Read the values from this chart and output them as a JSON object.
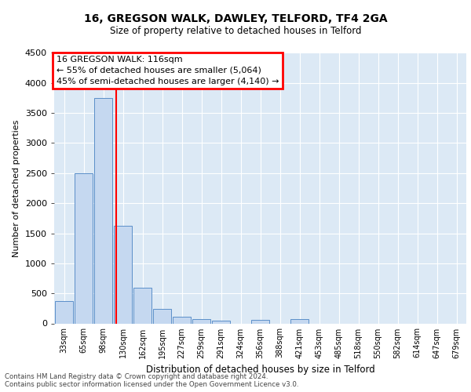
{
  "title1": "16, GREGSON WALK, DAWLEY, TELFORD, TF4 2GA",
  "title2": "Size of property relative to detached houses in Telford",
  "xlabel": "Distribution of detached houses by size in Telford",
  "ylabel": "Number of detached properties",
  "categories": [
    "33sqm",
    "65sqm",
    "98sqm",
    "130sqm",
    "162sqm",
    "195sqm",
    "227sqm",
    "259sqm",
    "291sqm",
    "324sqm",
    "356sqm",
    "388sqm",
    "421sqm",
    "453sqm",
    "485sqm",
    "518sqm",
    "550sqm",
    "582sqm",
    "614sqm",
    "647sqm",
    "679sqm"
  ],
  "values": [
    370,
    2500,
    3750,
    1630,
    590,
    245,
    110,
    70,
    50,
    0,
    60,
    0,
    70,
    0,
    0,
    0,
    0,
    0,
    0,
    0,
    0
  ],
  "bar_color": "#c5d8f0",
  "bar_edgecolor": "#5b8fc9",
  "vline_x": 2.67,
  "annotation_text": "16 GREGSON WALK: 116sqm\n← 55% of detached houses are smaller (5,064)\n45% of semi-detached houses are larger (4,140) →",
  "box_edgecolor": "red",
  "ylim": [
    0,
    4500
  ],
  "yticks": [
    0,
    500,
    1000,
    1500,
    2000,
    2500,
    3000,
    3500,
    4000,
    4500
  ],
  "footnote": "Contains HM Land Registry data © Crown copyright and database right 2024.\nContains public sector information licensed under the Open Government Licence v3.0.",
  "plot_bg_color": "#dce9f5"
}
